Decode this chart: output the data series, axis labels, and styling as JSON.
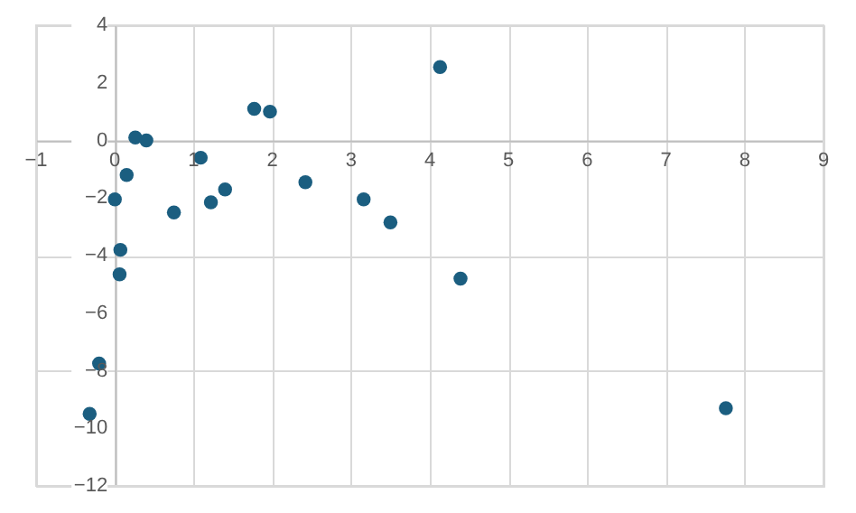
{
  "chart_data": {
    "type": "scatter",
    "marker": "circle",
    "grid": true,
    "x": [
      0.26,
      0.4,
      1.77,
      1.97,
      1.09,
      0.15,
      0.0,
      0.75,
      1.22,
      1.4,
      2.42,
      3.16,
      3.5,
      0.07,
      0.06,
      -0.2,
      -0.32,
      4.13,
      4.39,
      7.76
    ],
    "series": [
      {
        "color": "#1b5e80",
        "values": [
          0.1,
          0.0,
          1.1,
          1.0,
          -0.6,
          -1.2,
          -2.05,
          -2.5,
          -2.15,
          -1.7,
          -1.45,
          -2.05,
          -2.85,
          -3.8,
          -4.65,
          -7.75,
          -9.5,
          2.55,
          -4.8,
          -9.3
        ]
      }
    ],
    "xlim": [
      -1,
      9
    ],
    "xticks": [
      -1,
      0,
      1,
      2,
      3,
      4,
      5,
      6,
      7,
      8,
      9
    ],
    "ylim": [
      -12,
      4
    ],
    "yticks": [
      -12,
      -10,
      -8,
      -6,
      -4,
      -2,
      0,
      2,
      4
    ]
  }
}
